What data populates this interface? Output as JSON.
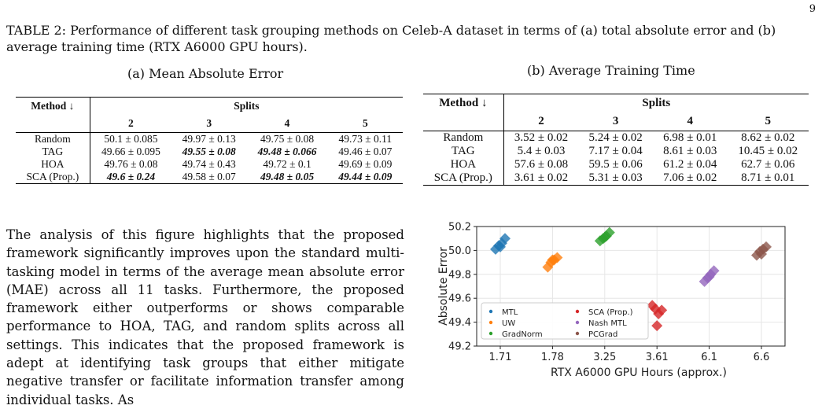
{
  "page_number": "9",
  "caption": "TABLE 2: Performance of different task grouping methods on Celeb-A dataset in terms of (a) total absolute error and (b) average training time (RTX A6000 GPU hours).",
  "table_a": {
    "title": "(a) Mean Absolute Error",
    "method_header": "Method ↓",
    "splits_header": "Splits",
    "split_labels": [
      "2",
      "3",
      "4",
      "5"
    ],
    "rows": [
      {
        "method": "Random",
        "values": [
          "50.1 ± 0.085",
          "49.97 ± 0.13",
          "49.75 ± 0.08",
          "49.73 ± 0.11"
        ],
        "bold": [
          false,
          false,
          false,
          false
        ]
      },
      {
        "method": "TAG",
        "values": [
          "49.66 ± 0.095",
          "49.55 ± 0.08",
          "49.48 ± 0.066",
          "49.46 ± 0.07"
        ],
        "bold": [
          false,
          true,
          true,
          false
        ]
      },
      {
        "method": "HOA",
        "values": [
          "49.76 ± 0.08",
          "49.74 ± 0.43",
          "49.72 ± 0.1",
          "49.69 ± 0.09"
        ],
        "bold": [
          false,
          false,
          false,
          false
        ]
      },
      {
        "method": "SCA (Prop.)",
        "values": [
          "49.6 ± 0.24",
          "49.58 ± 0.07",
          "49.48 ± 0.05",
          "49.44 ± 0.09"
        ],
        "bold": [
          true,
          false,
          true,
          true
        ]
      }
    ]
  },
  "table_b": {
    "title": "(b) Average Training Time",
    "method_header": "Method ↓",
    "splits_header": "Splits",
    "split_labels": [
      "2",
      "3",
      "4",
      "5"
    ],
    "rows": [
      {
        "method": "Random",
        "values": [
          "3.52 ± 0.02",
          "5.24 ± 0.02",
          "6.98 ± 0.01",
          "8.62 ± 0.02"
        ]
      },
      {
        "method": "TAG",
        "values": [
          "5.4 ± 0.03",
          "7.17 ± 0.04",
          "8.61 ± 0.03",
          "10.45 ± 0.02"
        ]
      },
      {
        "method": "HOA",
        "values": [
          "57.6 ± 0.08",
          "59.5 ± 0.06",
          "61.2 ± 0.04",
          "62.7 ± 0.06"
        ]
      },
      {
        "method": "SCA (Prop.)",
        "values": [
          "3.61 ± 0.02",
          "5.31 ± 0.03",
          "7.06 ± 0.02",
          "8.71 ± 0.01"
        ]
      }
    ]
  },
  "paragraph": "The analysis of this figure highlights that the proposed framework significantly improves upon the standard multi-tasking model in terms of the average mean absolute error (MAE) across all 11 tasks. Furthermore, the proposed framework either outperforms or shows comparable performance to HOA, TAG, and random splits across all settings. This indicates that the proposed framework is adept at identifying task groups that either mitigate negative transfer or facilitate information transfer among individual tasks. As",
  "chart_data": {
    "type": "scatter",
    "xlabel": "RTX A6000 GPU Hours (approx.)",
    "ylabel": "Absolute Error",
    "x_categories": [
      "1.71",
      "1.78",
      "3.25",
      "3.61",
      "6.1",
      "6.6"
    ],
    "ylim": [
      49.2,
      50.2
    ],
    "yticks": [
      "49.2",
      "49.4",
      "49.6",
      "49.8",
      "50.0",
      "50.2"
    ],
    "grid": true,
    "marker": "diamond",
    "legend_position": "bottom-left",
    "series": [
      {
        "name": "MTL",
        "color": "#1f77b4",
        "points": [
          {
            "x": "1.71",
            "y": 50.01
          },
          {
            "x": "1.71",
            "y": 50.04
          },
          {
            "x": "1.71",
            "y": 50.06
          },
          {
            "x": "1.71",
            "y": 50.1
          },
          {
            "x": "1.71",
            "y": 50.03
          }
        ]
      },
      {
        "name": "UW",
        "color": "#ff7f0e",
        "points": [
          {
            "x": "1.78",
            "y": 49.86
          },
          {
            "x": "1.78",
            "y": 49.9
          },
          {
            "x": "1.78",
            "y": 49.92
          },
          {
            "x": "1.78",
            "y": 49.94
          },
          {
            "x": "1.78",
            "y": 49.92
          }
        ]
      },
      {
        "name": "GradNorm",
        "color": "#2ca02c",
        "points": [
          {
            "x": "3.25",
            "y": 50.08
          },
          {
            "x": "3.25",
            "y": 50.1
          },
          {
            "x": "3.25",
            "y": 50.12
          },
          {
            "x": "3.25",
            "y": 50.15
          },
          {
            "x": "3.25",
            "y": 50.11
          }
        ]
      },
      {
        "name": "SCA (Prop.)",
        "color": "#d62728",
        "points": [
          {
            "x": "3.61",
            "y": 49.54
          },
          {
            "x": "3.61",
            "y": 49.51
          },
          {
            "x": "3.61",
            "y": 49.47
          },
          {
            "x": "3.61",
            "y": 49.5
          },
          {
            "x": "3.61",
            "y": 49.37
          }
        ]
      },
      {
        "name": "Nash MTL",
        "color": "#9467bd",
        "points": [
          {
            "x": "6.1",
            "y": 49.74
          },
          {
            "x": "6.1",
            "y": 49.77
          },
          {
            "x": "6.1",
            "y": 49.8
          },
          {
            "x": "6.1",
            "y": 49.83
          },
          {
            "x": "6.1",
            "y": 49.78
          }
        ]
      },
      {
        "name": "PCGrad",
        "color": "#8c564b",
        "points": [
          {
            "x": "6.6",
            "y": 49.96
          },
          {
            "x": "6.6",
            "y": 49.99
          },
          {
            "x": "6.6",
            "y": 50.01
          },
          {
            "x": "6.6",
            "y": 50.03
          },
          {
            "x": "6.6",
            "y": 49.97
          }
        ]
      }
    ]
  }
}
